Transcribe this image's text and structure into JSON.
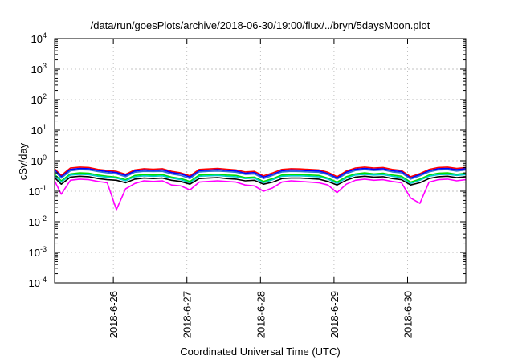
{
  "chart_data": {
    "type": "line",
    "title": "/data/run/goesPlots/archive/2018-06-30/19:00/flux/../bryn/5daysMoon.plot",
    "xlabel": "Coordinated Universal Time (UTC)",
    "ylabel": "cSv/day",
    "x_scale": "time",
    "y_scale": "log",
    "xlim": [
      "2018-06-25T04:50",
      "2018-06-30T19:00"
    ],
    "ylim": [
      0.0001,
      10000
    ],
    "x_ticks": [
      {
        "value": "2018-06-26T00:00",
        "label": "2018-6-26"
      },
      {
        "value": "2018-06-27T00:00",
        "label": "2018-6-27"
      },
      {
        "value": "2018-06-28T00:00",
        "label": "2018-6-28"
      },
      {
        "value": "2018-06-29T00:00",
        "label": "2018-6-29"
      },
      {
        "value": "2018-06-30T00:00",
        "label": "2018-6-30"
      }
    ],
    "y_ticks": [
      {
        "value": 0.0001,
        "base": "10",
        "exp": "-4"
      },
      {
        "value": 0.001,
        "base": "10",
        "exp": "-3"
      },
      {
        "value": 0.01,
        "base": "10",
        "exp": "-2"
      },
      {
        "value": 0.1,
        "base": "10",
        "exp": "-1"
      },
      {
        "value": 1,
        "base": "10",
        "exp": "0"
      },
      {
        "value": 10,
        "base": "10",
        "exp": "1"
      },
      {
        "value": 100,
        "base": "10",
        "exp": "2"
      },
      {
        "value": 1000,
        "base": "10",
        "exp": "3"
      },
      {
        "value": 10000,
        "base": "10",
        "exp": "4"
      }
    ],
    "grid": true,
    "legend": "none",
    "x": [
      "2018-06-25T04:50",
      "2018-06-25T07:00",
      "2018-06-25T10:00",
      "2018-06-25T13:00",
      "2018-06-25T16:00",
      "2018-06-25T19:00",
      "2018-06-25T22:00",
      "2018-06-26T01:00",
      "2018-06-26T04:00",
      "2018-06-26T07:00",
      "2018-06-26T10:00",
      "2018-06-26T13:00",
      "2018-06-26T16:00",
      "2018-06-26T19:00",
      "2018-06-26T22:00",
      "2018-06-27T01:00",
      "2018-06-27T04:00",
      "2018-06-27T07:00",
      "2018-06-27T10:00",
      "2018-06-27T13:00",
      "2018-06-27T16:00",
      "2018-06-27T19:00",
      "2018-06-27T22:00",
      "2018-06-28T01:00",
      "2018-06-28T04:00",
      "2018-06-28T07:00",
      "2018-06-28T10:00",
      "2018-06-28T13:00",
      "2018-06-28T16:00",
      "2018-06-28T19:00",
      "2018-06-28T22:00",
      "2018-06-29T01:00",
      "2018-06-29T04:00",
      "2018-06-29T07:00",
      "2018-06-29T10:00",
      "2018-06-29T13:00",
      "2018-06-29T16:00",
      "2018-06-29T19:00",
      "2018-06-29T22:00",
      "2018-06-30T01:00",
      "2018-06-30T04:00",
      "2018-06-30T07:00",
      "2018-06-30T10:00",
      "2018-06-30T13:00",
      "2018-06-30T16:00",
      "2018-06-30T19:00"
    ],
    "series": [
      {
        "color": "#ff0000",
        "values": [
          0.55,
          0.33,
          0.58,
          0.62,
          0.6,
          0.52,
          0.48,
          0.45,
          0.36,
          0.5,
          0.55,
          0.53,
          0.55,
          0.45,
          0.4,
          0.32,
          0.52,
          0.54,
          0.56,
          0.53,
          0.5,
          0.43,
          0.45,
          0.32,
          0.4,
          0.52,
          0.55,
          0.54,
          0.52,
          0.5,
          0.42,
          0.3,
          0.46,
          0.58,
          0.62,
          0.58,
          0.6,
          0.52,
          0.48,
          0.3,
          0.38,
          0.52,
          0.6,
          0.62,
          0.56,
          0.6
        ]
      },
      {
        "color": "#0000ff",
        "values": [
          0.5,
          0.3,
          0.52,
          0.56,
          0.55,
          0.48,
          0.44,
          0.41,
          0.33,
          0.46,
          0.5,
          0.48,
          0.5,
          0.41,
          0.37,
          0.29,
          0.47,
          0.49,
          0.51,
          0.48,
          0.46,
          0.39,
          0.41,
          0.29,
          0.36,
          0.47,
          0.5,
          0.49,
          0.47,
          0.46,
          0.38,
          0.27,
          0.42,
          0.53,
          0.56,
          0.53,
          0.55,
          0.47,
          0.44,
          0.27,
          0.35,
          0.47,
          0.55,
          0.56,
          0.51,
          0.55
        ]
      },
      {
        "color": "#2f6fd8",
        "values": [
          0.46,
          0.27,
          0.47,
          0.51,
          0.5,
          0.44,
          0.4,
          0.37,
          0.3,
          0.42,
          0.45,
          0.44,
          0.45,
          0.37,
          0.33,
          0.26,
          0.43,
          0.45,
          0.46,
          0.44,
          0.42,
          0.36,
          0.37,
          0.26,
          0.33,
          0.43,
          0.45,
          0.44,
          0.43,
          0.42,
          0.35,
          0.25,
          0.38,
          0.48,
          0.51,
          0.48,
          0.5,
          0.43,
          0.4,
          0.25,
          0.32,
          0.43,
          0.5,
          0.51,
          0.46,
          0.5
        ]
      },
      {
        "color": "#00dd00",
        "values": [
          0.36,
          0.22,
          0.37,
          0.4,
          0.39,
          0.34,
          0.31,
          0.29,
          0.24,
          0.33,
          0.35,
          0.34,
          0.35,
          0.29,
          0.26,
          0.21,
          0.34,
          0.35,
          0.36,
          0.34,
          0.33,
          0.28,
          0.29,
          0.21,
          0.26,
          0.34,
          0.35,
          0.35,
          0.34,
          0.33,
          0.27,
          0.2,
          0.3,
          0.37,
          0.4,
          0.37,
          0.39,
          0.34,
          0.31,
          0.2,
          0.25,
          0.34,
          0.39,
          0.4,
          0.36,
          0.39
        ]
      },
      {
        "color": "#00cccc",
        "values": [
          0.33,
          0.2,
          0.34,
          0.36,
          0.35,
          0.31,
          0.29,
          0.27,
          0.22,
          0.3,
          0.32,
          0.31,
          0.32,
          0.27,
          0.24,
          0.19,
          0.31,
          0.32,
          0.33,
          0.31,
          0.3,
          0.26,
          0.27,
          0.19,
          0.24,
          0.31,
          0.32,
          0.32,
          0.31,
          0.3,
          0.25,
          0.18,
          0.27,
          0.34,
          0.36,
          0.34,
          0.35,
          0.31,
          0.28,
          0.18,
          0.23,
          0.31,
          0.35,
          0.36,
          0.33,
          0.35
        ]
      },
      {
        "color": "#000000",
        "values": [
          0.28,
          0.17,
          0.29,
          0.31,
          0.3,
          0.26,
          0.24,
          0.23,
          0.19,
          0.25,
          0.27,
          0.26,
          0.27,
          0.23,
          0.21,
          0.17,
          0.26,
          0.27,
          0.28,
          0.26,
          0.25,
          0.22,
          0.23,
          0.17,
          0.2,
          0.26,
          0.27,
          0.27,
          0.26,
          0.25,
          0.21,
          0.16,
          0.23,
          0.29,
          0.31,
          0.29,
          0.3,
          0.26,
          0.24,
          0.16,
          0.19,
          0.26,
          0.3,
          0.31,
          0.28,
          0.3
        ]
      },
      {
        "color": "#ff00ff",
        "values": [
          0.22,
          0.08,
          0.23,
          0.25,
          0.24,
          0.21,
          0.19,
          0.025,
          0.12,
          0.18,
          0.22,
          0.21,
          0.22,
          0.16,
          0.15,
          0.11,
          0.2,
          0.21,
          0.22,
          0.21,
          0.2,
          0.16,
          0.15,
          0.1,
          0.13,
          0.2,
          0.22,
          0.21,
          0.2,
          0.19,
          0.16,
          0.09,
          0.17,
          0.23,
          0.25,
          0.23,
          0.24,
          0.21,
          0.19,
          0.06,
          0.04,
          0.2,
          0.24,
          0.25,
          0.22,
          0.24
        ]
      }
    ]
  }
}
